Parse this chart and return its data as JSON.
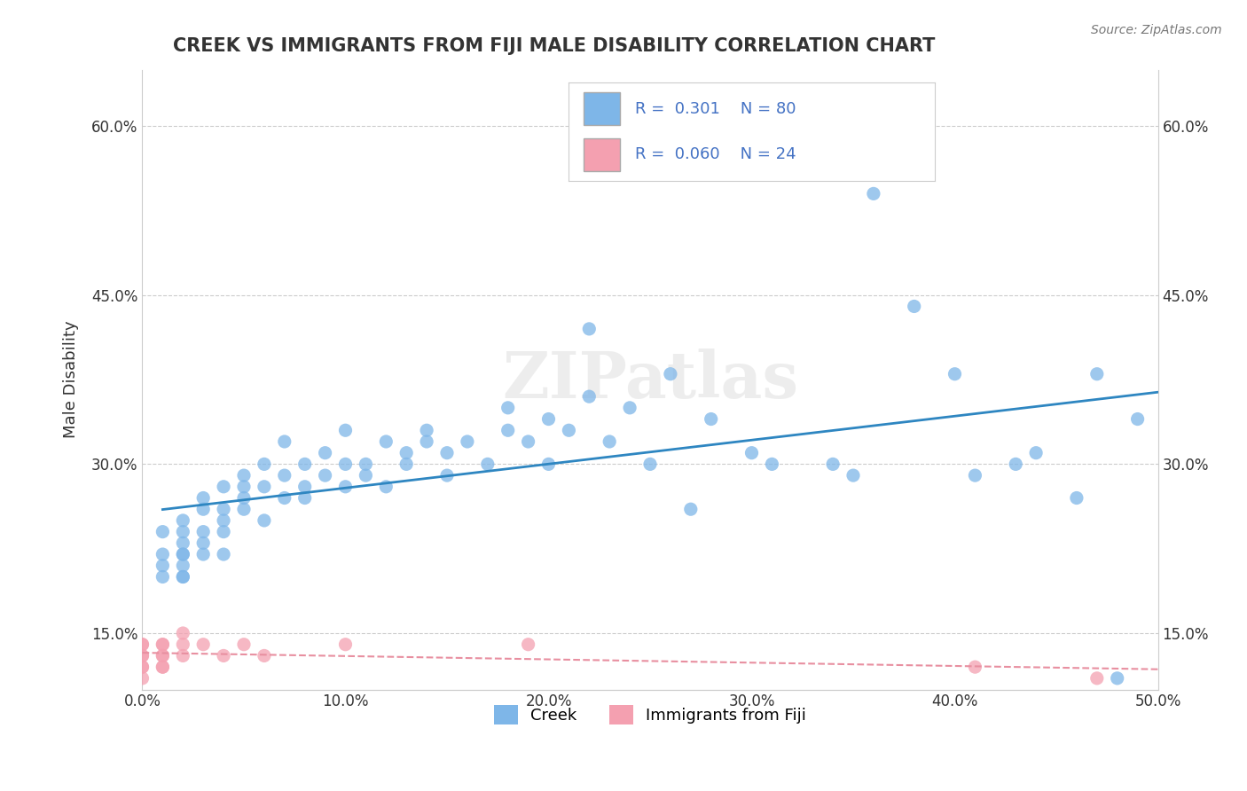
{
  "title": "CREEK VS IMMIGRANTS FROM FIJI MALE DISABILITY CORRELATION CHART",
  "source": "Source: ZipAtlas.com",
  "ylabel": "Male Disability",
  "xlabel": "",
  "xlim": [
    0.0,
    0.5
  ],
  "ylim": [
    0.1,
    0.65
  ],
  "yticks": [
    0.15,
    0.3,
    0.45,
    0.6
  ],
  "ytick_labels": [
    "15.0%",
    "30.0%",
    "45.0%",
    "60.0%"
  ],
  "xticks": [
    0.0,
    0.1,
    0.2,
    0.3,
    0.4,
    0.5
  ],
  "xtick_labels": [
    "0.0%",
    "10.0%",
    "20.0%",
    "30.0%",
    "40.0%",
    "50.0%"
  ],
  "creek_color": "#7EB6E8",
  "fiji_color": "#F4A0B0",
  "creek_line_color": "#2E86C1",
  "fiji_line_color": "#E88FA0",
  "background_color": "#FFFFFF",
  "grid_color": "#CCCCCC",
  "legend_text_color": "#4472C4",
  "watermark": "ZIPatlas",
  "creek_R": 0.301,
  "creek_N": 80,
  "fiji_R": 0.06,
  "fiji_N": 24,
  "creek_x": [
    0.01,
    0.01,
    0.01,
    0.01,
    0.02,
    0.02,
    0.02,
    0.02,
    0.02,
    0.02,
    0.02,
    0.02,
    0.03,
    0.03,
    0.03,
    0.03,
    0.03,
    0.04,
    0.04,
    0.04,
    0.04,
    0.04,
    0.05,
    0.05,
    0.05,
    0.05,
    0.06,
    0.06,
    0.06,
    0.07,
    0.07,
    0.07,
    0.08,
    0.08,
    0.08,
    0.09,
    0.09,
    0.1,
    0.1,
    0.1,
    0.11,
    0.11,
    0.12,
    0.12,
    0.13,
    0.13,
    0.14,
    0.14,
    0.15,
    0.15,
    0.16,
    0.17,
    0.18,
    0.18,
    0.19,
    0.2,
    0.2,
    0.21,
    0.22,
    0.22,
    0.23,
    0.24,
    0.25,
    0.26,
    0.27,
    0.28,
    0.3,
    0.31,
    0.34,
    0.35,
    0.36,
    0.38,
    0.4,
    0.41,
    0.43,
    0.44,
    0.46,
    0.47,
    0.48,
    0.49
  ],
  "creek_y": [
    0.22,
    0.24,
    0.2,
    0.21,
    0.22,
    0.23,
    0.2,
    0.21,
    0.24,
    0.25,
    0.22,
    0.2,
    0.23,
    0.27,
    0.24,
    0.26,
    0.22,
    0.28,
    0.25,
    0.26,
    0.24,
    0.22,
    0.29,
    0.27,
    0.26,
    0.28,
    0.3,
    0.28,
    0.25,
    0.29,
    0.27,
    0.32,
    0.28,
    0.3,
    0.27,
    0.29,
    0.31,
    0.28,
    0.3,
    0.33,
    0.3,
    0.29,
    0.32,
    0.28,
    0.31,
    0.3,
    0.33,
    0.32,
    0.31,
    0.29,
    0.32,
    0.3,
    0.33,
    0.35,
    0.32,
    0.3,
    0.34,
    0.33,
    0.36,
    0.42,
    0.32,
    0.35,
    0.3,
    0.38,
    0.26,
    0.34,
    0.31,
    0.3,
    0.3,
    0.29,
    0.54,
    0.44,
    0.38,
    0.29,
    0.3,
    0.31,
    0.27,
    0.38,
    0.11,
    0.34
  ],
  "fiji_x": [
    0.0,
    0.0,
    0.0,
    0.0,
    0.0,
    0.0,
    0.0,
    0.01,
    0.01,
    0.01,
    0.01,
    0.01,
    0.01,
    0.02,
    0.02,
    0.02,
    0.03,
    0.04,
    0.05,
    0.06,
    0.1,
    0.19,
    0.41,
    0.47
  ],
  "fiji_y": [
    0.12,
    0.13,
    0.14,
    0.12,
    0.11,
    0.13,
    0.14,
    0.14,
    0.13,
    0.12,
    0.14,
    0.13,
    0.12,
    0.15,
    0.14,
    0.13,
    0.14,
    0.13,
    0.14,
    0.13,
    0.14,
    0.14,
    0.12,
    0.11
  ]
}
